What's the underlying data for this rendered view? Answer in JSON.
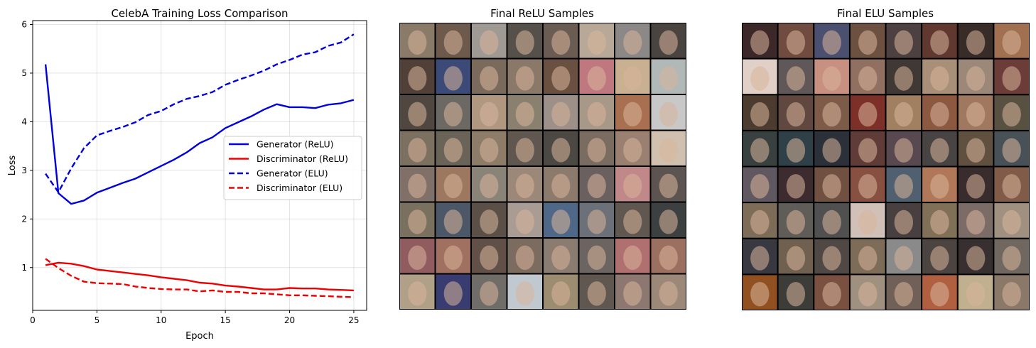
{
  "chart_data": [
    {
      "type": "line",
      "title": "CelebA Training Loss Comparison",
      "xlabel": "Epoch",
      "ylabel": "Loss",
      "xlim": [
        0,
        26
      ],
      "ylim": [
        0.12,
        6.08
      ],
      "xticks": [
        0,
        5,
        10,
        15,
        20,
        25
      ],
      "yticks": [
        1,
        2,
        3,
        4,
        5,
        6
      ],
      "grid": true,
      "legend_position": "center-right",
      "x": [
        1,
        2,
        3,
        4,
        5,
        6,
        7,
        8,
        9,
        10,
        11,
        12,
        13,
        14,
        15,
        16,
        17,
        18,
        19,
        20,
        21,
        22,
        23,
        24,
        25
      ],
      "series": [
        {
          "name": "Generator (ReLU)",
          "color": "#0000dd",
          "linestyle": "solid",
          "values": [
            5.18,
            2.53,
            2.31,
            2.38,
            2.54,
            2.64,
            2.74,
            2.83,
            2.96,
            3.09,
            3.22,
            3.37,
            3.56,
            3.68,
            3.87,
            3.99,
            4.11,
            4.25,
            4.36,
            4.3,
            4.3,
            4.28,
            4.35,
            4.38,
            4.45
          ]
        },
        {
          "name": "Discriminator (ReLU)",
          "color": "#ee0000",
          "linestyle": "solid",
          "values": [
            1.05,
            1.1,
            1.08,
            1.03,
            0.96,
            0.93,
            0.9,
            0.87,
            0.84,
            0.8,
            0.77,
            0.74,
            0.69,
            0.67,
            0.63,
            0.61,
            0.58,
            0.55,
            0.55,
            0.58,
            0.57,
            0.57,
            0.55,
            0.54,
            0.53
          ]
        },
        {
          "name": "Generator (ELU)",
          "color": "#0000dd",
          "linestyle": "dashed",
          "values": [
            2.93,
            2.55,
            3.04,
            3.46,
            3.72,
            3.81,
            3.89,
            3.99,
            4.14,
            4.22,
            4.36,
            4.47,
            4.53,
            4.61,
            4.76,
            4.86,
            4.95,
            5.05,
            5.18,
            5.27,
            5.38,
            5.43,
            5.56,
            5.63,
            5.8
          ]
        },
        {
          "name": "Discriminator (ELU)",
          "color": "#ee0000",
          "linestyle": "dashed",
          "values": [
            1.18,
            0.99,
            0.83,
            0.71,
            0.68,
            0.67,
            0.66,
            0.61,
            0.58,
            0.56,
            0.55,
            0.55,
            0.51,
            0.53,
            0.5,
            0.5,
            0.47,
            0.47,
            0.45,
            0.43,
            0.43,
            0.42,
            0.41,
            0.4,
            0.39
          ]
        }
      ]
    },
    {
      "type": "image-grid",
      "title": "Final ReLU Samples",
      "rows": 8,
      "cols": 8,
      "tones": [
        "#8a7a68",
        "#6d5a4c",
        "#a09a94",
        "#55504a",
        "#6a5c52",
        "#b8a898",
        "#8c8888",
        "#4a4440",
        "#504038",
        "#3c4a78",
        "#7a6a5c",
        "#8a7868",
        "#6a5040",
        "#c07880",
        "#c8b090",
        "#b0b8b8",
        "#504840",
        "#6c6864",
        "#b09880",
        "#8a8070",
        "#9c9088",
        "#a89888",
        "#a87050",
        "#c8c8c8",
        "#7c7060",
        "#6a6458",
        "#8c7c68",
        "#605850",
        "#4c4844",
        "#7a6c60",
        "#9a8070",
        "#d0c0b0",
        "#807068",
        "#9c7860",
        "#8a8478",
        "#9c8878",
        "#8c7a6c",
        "#6a6060",
        "#c08888",
        "#5c5450",
        "#7a7060",
        "#4c5868",
        "#5a5048",
        "#a89c94",
        "#506888",
        "#6c7078",
        "#605850",
        "#3c4040",
        "#905c60",
        "#a07060",
        "#605048",
        "#7c6c60",
        "#8a7c70",
        "#6c6460",
        "#b07070",
        "#9c7060",
        "#b0a088",
        "#383c70",
        "#706c68",
        "#c0c8d0",
        "#9c8c70",
        "#605850",
        "#8c7870",
        "#9c8878"
      ]
    },
    {
      "type": "image-grid",
      "title": "Final ELU Samples",
      "rows": 8,
      "cols": 8,
      "tones": [
        "#3c2828",
        "#704c40",
        "#4c5070",
        "#6c5040",
        "#4c4040",
        "#603830",
        "#382c28",
        "#a07050",
        "#e0d0c8",
        "#605858",
        "#c89080",
        "#907060",
        "#403834",
        "#a89078",
        "#9c8878",
        "#6c3c38",
        "#4c3c30",
        "#604840",
        "#7c5c48",
        "#7c3028",
        "#a08060",
        "#8c5840",
        "#a07860",
        "#585040",
        "#384040",
        "#304048",
        "#2c3038",
        "#603c38",
        "#584850",
        "#484444",
        "#605040",
        "#485058",
        "#605860",
        "#3c2c30",
        "#705040",
        "#885040",
        "#506070",
        "#b07858",
        "#382c2c",
        "#805c48",
        "#7c6c58",
        "#605c58",
        "#505050",
        "#d0c0b8",
        "#484040",
        "#807058",
        "#7c6c68",
        "#a09080",
        "#383840",
        "#706050",
        "#504844",
        "#7c6c58",
        "#8a8a8a",
        "#4c4440",
        "#383030",
        "#706860",
        "#905020",
        "#3c3c38",
        "#7a5040",
        "#a09080",
        "#706058",
        "#b06040",
        "#c0b090",
        "#8a7868"
      ]
    }
  ]
}
